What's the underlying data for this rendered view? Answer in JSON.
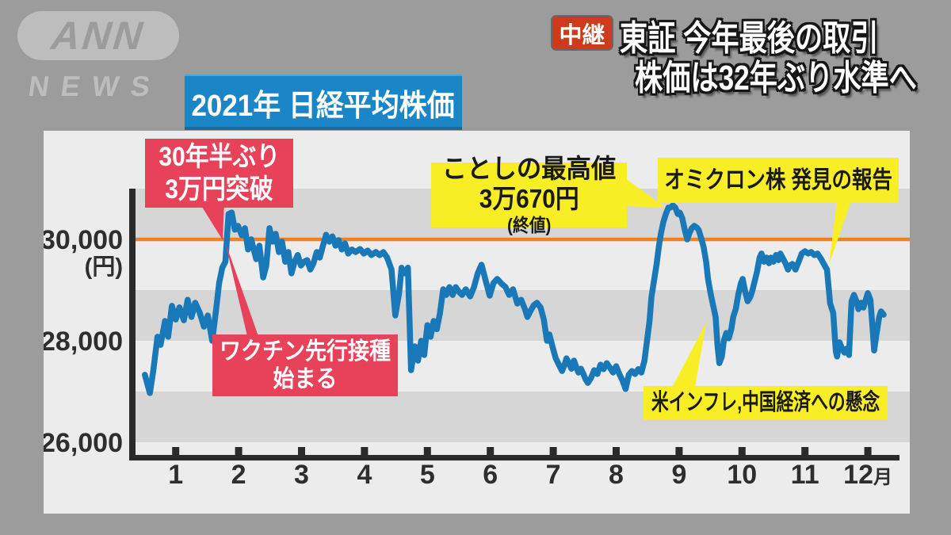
{
  "colors": {
    "bg": "#9c9c9c",
    "panel": "#ececec",
    "band": "#d6d6d6",
    "axis": "#2a2a2a",
    "text_dark": "#2e2e2e",
    "blue_line": "#1878b8",
    "orange": "#ef8125",
    "pink": "#e8415a",
    "yellow": "#f8ee26",
    "title_blue": "#1a86c8",
    "badge_red": "#cf3a1c",
    "logo_gray": "#bdbdbd"
  },
  "logo": {
    "brand": "ANN",
    "sub": "NEWS"
  },
  "live_badge": "中継",
  "headline": {
    "line1": "東証 今年最後の取引",
    "line2": "株価は32年ぶり水準へ"
  },
  "chart_data": {
    "type": "line",
    "title": "2021年 日経平均株価",
    "y_unit": "(円)",
    "x_ticks": [
      "1",
      "2",
      "3",
      "4",
      "5",
      "6",
      "7",
      "8",
      "9",
      "10",
      "11",
      "12月"
    ],
    "y_ticks": [
      {
        "value": 30000,
        "label": "30,000"
      },
      {
        "value": 28000,
        "label": "28,000"
      },
      {
        "value": 26000,
        "label": "26,000"
      }
    ],
    "y_range": [
      25700,
      31000
    ],
    "x_range_months": [
      0,
      12.2
    ],
    "grid": "alternating-horizontal-bands",
    "legend": "none",
    "reference_line": {
      "value": 30000
    },
    "shaded_bands": [
      [
        31000,
        30000
      ],
      [
        29000,
        28000
      ],
      [
        27000,
        26000
      ]
    ],
    "series": [
      {
        "name": "日経平均株価(終値)",
        "points": [
          [
            0.01,
            27330
          ],
          [
            0.09,
            26970
          ],
          [
            0.14,
            27375
          ],
          [
            0.21,
            28080
          ],
          [
            0.26,
            27920
          ],
          [
            0.33,
            28390
          ],
          [
            0.38,
            28080
          ],
          [
            0.44,
            28690
          ],
          [
            0.5,
            28420
          ],
          [
            0.56,
            28660
          ],
          [
            0.63,
            28405
          ],
          [
            0.69,
            28810
          ],
          [
            0.75,
            28470
          ],
          [
            0.81,
            28750
          ],
          [
            0.88,
            28560
          ],
          [
            0.95,
            28280
          ],
          [
            1.01,
            28500
          ],
          [
            1.08,
            28000
          ],
          [
            1.14,
            28590
          ],
          [
            1.19,
            29140
          ],
          [
            1.24,
            29440
          ],
          [
            1.29,
            29560
          ],
          [
            1.34,
            30500
          ],
          [
            1.39,
            30530
          ],
          [
            1.44,
            30190
          ],
          [
            1.49,
            30265
          ],
          [
            1.55,
            30080
          ],
          [
            1.6,
            30220
          ],
          [
            1.65,
            29800
          ],
          [
            1.7,
            30000
          ],
          [
            1.78,
            29610
          ],
          [
            1.83,
            29875
          ],
          [
            1.89,
            29250
          ],
          [
            1.94,
            29485
          ],
          [
            1.99,
            30220
          ],
          [
            2.04,
            29955
          ],
          [
            2.09,
            30110
          ],
          [
            2.14,
            29750
          ],
          [
            2.19,
            29955
          ],
          [
            2.24,
            29560
          ],
          [
            2.29,
            29750
          ],
          [
            2.34,
            29330
          ],
          [
            2.39,
            29560
          ],
          [
            2.44,
            29690
          ],
          [
            2.49,
            29485
          ],
          [
            2.54,
            29560
          ],
          [
            2.59,
            29590
          ],
          [
            2.64,
            29405
          ],
          [
            2.69,
            29530
          ],
          [
            2.74,
            29750
          ],
          [
            2.79,
            29640
          ],
          [
            2.84,
            29875
          ],
          [
            2.89,
            30090
          ],
          [
            2.94,
            29955
          ],
          [
            2.99,
            30060
          ],
          [
            3.04,
            29875
          ],
          [
            3.09,
            29985
          ],
          [
            3.14,
            29800
          ],
          [
            3.19,
            29920
          ],
          [
            3.24,
            29720
          ],
          [
            3.3,
            29800
          ],
          [
            3.36,
            29750
          ],
          [
            3.43,
            29810
          ],
          [
            3.49,
            29720
          ],
          [
            3.55,
            29780
          ],
          [
            3.61,
            29690
          ],
          [
            3.68,
            29750
          ],
          [
            3.74,
            29690
          ],
          [
            3.8,
            29750
          ],
          [
            3.86,
            29640
          ],
          [
            3.93,
            29405
          ],
          [
            3.99,
            28500
          ],
          [
            4.05,
            28940
          ],
          [
            4.09,
            29440
          ],
          [
            4.14,
            29330
          ],
          [
            4.19,
            29440
          ],
          [
            4.24,
            27420
          ],
          [
            4.3,
            27890
          ],
          [
            4.35,
            27610
          ],
          [
            4.4,
            28000
          ],
          [
            4.45,
            27720
          ],
          [
            4.5,
            28310
          ],
          [
            4.55,
            28080
          ],
          [
            4.6,
            28390
          ],
          [
            4.65,
            28230
          ],
          [
            4.7,
            28550
          ],
          [
            4.75,
            29015
          ],
          [
            4.8,
            28905
          ],
          [
            4.85,
            29060
          ],
          [
            4.9,
            28905
          ],
          [
            4.95,
            29060
          ],
          [
            5.0,
            28970
          ],
          [
            5.05,
            28905
          ],
          [
            5.11,
            29015
          ],
          [
            5.18,
            28875
          ],
          [
            5.24,
            29060
          ],
          [
            5.3,
            29330
          ],
          [
            5.36,
            29500
          ],
          [
            5.43,
            29170
          ],
          [
            5.49,
            28890
          ],
          [
            5.55,
            29140
          ],
          [
            5.61,
            29220
          ],
          [
            5.68,
            29125
          ],
          [
            5.74,
            29060
          ],
          [
            5.8,
            28905
          ],
          [
            5.86,
            29015
          ],
          [
            5.93,
            28735
          ],
          [
            5.99,
            28810
          ],
          [
            6.05,
            28625
          ],
          [
            6.09,
            28470
          ],
          [
            6.14,
            28590
          ],
          [
            6.19,
            28700
          ],
          [
            6.24,
            28750
          ],
          [
            6.3,
            28655
          ],
          [
            6.35,
            28420
          ],
          [
            6.4,
            28000
          ],
          [
            6.44,
            28125
          ],
          [
            6.49,
            27875
          ],
          [
            6.54,
            27655
          ],
          [
            6.59,
            27530
          ],
          [
            6.64,
            27405
          ],
          [
            6.68,
            27530
          ],
          [
            6.71,
            27655
          ],
          [
            6.75,
            27560
          ],
          [
            6.79,
            27450
          ],
          [
            6.83,
            27610
          ],
          [
            6.86,
            27500
          ],
          [
            6.9,
            27375
          ],
          [
            6.94,
            27450
          ],
          [
            6.98,
            27345
          ],
          [
            7.01,
            27250
          ],
          [
            7.05,
            27170
          ],
          [
            7.1,
            27265
          ],
          [
            7.15,
            27420
          ],
          [
            7.2,
            27345
          ],
          [
            7.25,
            27530
          ],
          [
            7.3,
            27440
          ],
          [
            7.35,
            27560
          ],
          [
            7.4,
            27470
          ],
          [
            7.45,
            27375
          ],
          [
            7.5,
            27500
          ],
          [
            7.55,
            27345
          ],
          [
            7.6,
            27220
          ],
          [
            7.65,
            27050
          ],
          [
            7.7,
            27330
          ],
          [
            7.75,
            27405
          ],
          [
            7.8,
            27345
          ],
          [
            7.85,
            27440
          ],
          [
            7.9,
            27375
          ],
          [
            7.95,
            27610
          ],
          [
            7.99,
            28000
          ],
          [
            8.03,
            28390
          ],
          [
            8.06,
            28860
          ],
          [
            8.1,
            29170
          ],
          [
            8.14,
            29485
          ],
          [
            8.18,
            29875
          ],
          [
            8.21,
            30110
          ],
          [
            8.25,
            30345
          ],
          [
            8.29,
            30500
          ],
          [
            8.33,
            30625
          ],
          [
            8.36,
            30625
          ],
          [
            8.4,
            30670
          ],
          [
            8.44,
            30625
          ],
          [
            8.48,
            30500
          ],
          [
            8.51,
            30530
          ],
          [
            8.55,
            30420
          ],
          [
            8.59,
            30190
          ],
          [
            8.63,
            30000
          ],
          [
            8.66,
            30110
          ],
          [
            8.7,
            30220
          ],
          [
            8.74,
            30265
          ],
          [
            8.78,
            30235
          ],
          [
            8.81,
            30190
          ],
          [
            8.85,
            30030
          ],
          [
            8.89,
            29845
          ],
          [
            8.93,
            29560
          ],
          [
            8.96,
            29220
          ],
          [
            9.0,
            28940
          ],
          [
            9.04,
            28700
          ],
          [
            9.08,
            28470
          ],
          [
            9.11,
            27920
          ],
          [
            9.14,
            27560
          ],
          [
            9.18,
            27690
          ],
          [
            9.21,
            28000
          ],
          [
            9.25,
            28155
          ],
          [
            9.29,
            28050
          ],
          [
            9.33,
            28230
          ],
          [
            9.36,
            28470
          ],
          [
            9.4,
            28625
          ],
          [
            9.44,
            28905
          ],
          [
            9.48,
            29125
          ],
          [
            9.51,
            29220
          ],
          [
            9.55,
            28970
          ],
          [
            9.59,
            28780
          ],
          [
            9.63,
            28860
          ],
          [
            9.66,
            28970
          ],
          [
            9.7,
            29170
          ],
          [
            9.74,
            29375
          ],
          [
            9.78,
            29640
          ],
          [
            9.81,
            29720
          ],
          [
            9.85,
            29560
          ],
          [
            9.89,
            29640
          ],
          [
            9.93,
            29530
          ],
          [
            9.96,
            29640
          ],
          [
            10.0,
            29560
          ],
          [
            10.04,
            29690
          ],
          [
            10.08,
            29590
          ],
          [
            10.11,
            29720
          ],
          [
            10.15,
            29625
          ],
          [
            10.19,
            29530
          ],
          [
            10.23,
            29405
          ],
          [
            10.26,
            29485
          ],
          [
            10.3,
            29515
          ],
          [
            10.35,
            29405
          ],
          [
            10.4,
            29560
          ],
          [
            10.45,
            29720
          ],
          [
            10.5,
            29765
          ],
          [
            10.55,
            29720
          ],
          [
            10.6,
            29750
          ],
          [
            10.65,
            29690
          ],
          [
            10.7,
            29720
          ],
          [
            10.75,
            29625
          ],
          [
            10.8,
            29515
          ],
          [
            10.85,
            29405
          ],
          [
            10.9,
            28735
          ],
          [
            10.95,
            28550
          ],
          [
            10.99,
            27800
          ],
          [
            11.01,
            27690
          ],
          [
            11.05,
            27970
          ],
          [
            11.09,
            27845
          ],
          [
            11.13,
            27765
          ],
          [
            11.16,
            27845
          ],
          [
            11.2,
            27720
          ],
          [
            11.24,
            28780
          ],
          [
            11.28,
            28905
          ],
          [
            11.31,
            28810
          ],
          [
            11.35,
            28625
          ],
          [
            11.39,
            28750
          ],
          [
            11.43,
            28655
          ],
          [
            11.46,
            28780
          ],
          [
            11.5,
            28940
          ],
          [
            11.54,
            28810
          ],
          [
            11.58,
            28155
          ],
          [
            11.6,
            27810
          ],
          [
            11.64,
            28155
          ],
          [
            11.68,
            28470
          ],
          [
            11.71,
            28580
          ],
          [
            11.75,
            28515
          ]
        ]
      }
    ],
    "annotations": [
      {
        "id": "thirty-year-break",
        "style": "pink",
        "lines": [
          "30年半ぶり",
          "3万円突破"
        ],
        "target": {
          "month": 1.39,
          "value": 30530
        }
      },
      {
        "id": "vaccine-start",
        "style": "pink",
        "lines": [
          "ワクチン先行接種",
          "始まる"
        ],
        "target": {
          "month": 1.35,
          "value": 30000
        }
      },
      {
        "id": "year-high",
        "style": "yellow",
        "lines": [
          "ことしの最高値"
        ],
        "value": "3万670円",
        "value_suffix": "(終値)",
        "target": {
          "month": 8.4,
          "value": 30670
        }
      },
      {
        "id": "omicron-report",
        "style": "yellow",
        "lines": [
          "オミクロン株 発見の報告"
        ],
        "target": {
          "month": 10.86,
          "value": 29450
        }
      },
      {
        "id": "inflation-china-concern",
        "style": "yellow",
        "lines": [
          "米インフレ,中国経済への懸念"
        ],
        "target": {
          "month": 8.95,
          "value": 28450
        }
      }
    ]
  }
}
